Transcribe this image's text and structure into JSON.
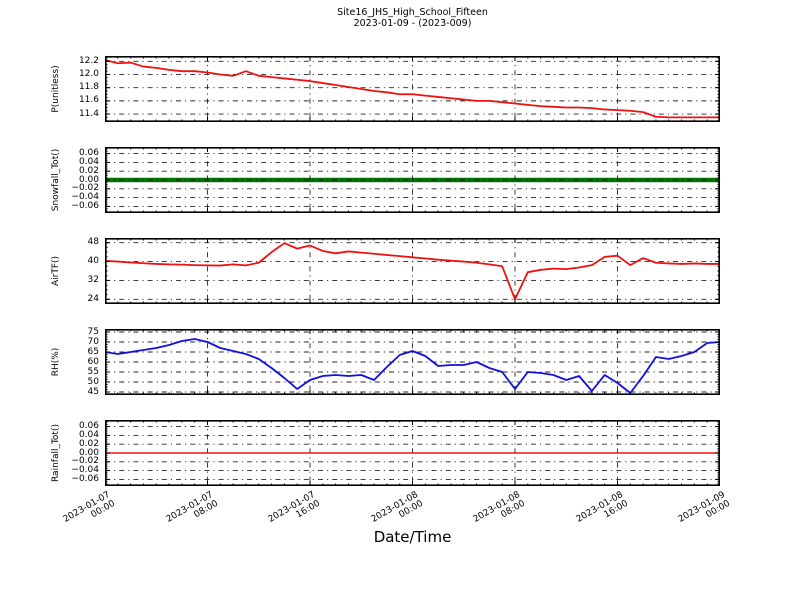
{
  "title": {
    "line1": "Site16_JHS_High_School_Fifteen",
    "line2": "2023-01-09 - (2023-009)"
  },
  "xlabel": "Date/Time",
  "background_color": "#ffffff",
  "grid": {
    "style": "dash-dot",
    "color": "#000000"
  },
  "x_axis": {
    "label": "Date/Time",
    "range_hours": [
      0,
      48
    ],
    "major_tick_hours": [
      0,
      8,
      16,
      24,
      32,
      40,
      48
    ],
    "minor_tick_step_hours": 1,
    "tick_labels": [
      [
        "2023-01-07",
        "00:00"
      ],
      [
        "2023-01-07",
        "08:00"
      ],
      [
        "2023-01-07",
        "16:00"
      ],
      [
        "2023-01-08",
        "00:00"
      ],
      [
        "2023-01-08",
        "08:00"
      ],
      [
        "2023-01-08",
        "16:00"
      ],
      [
        "2023-01-09",
        "00:00"
      ]
    ]
  },
  "chart_data": [
    {
      "type": "line",
      "name": "p_unitless",
      "ylabel": "P(unitless)",
      "color": "#ee1111",
      "linewidth": 1.8,
      "ylim": [
        11.28,
        12.28
      ],
      "yticks": [
        11.4,
        11.6,
        11.8,
        12.0,
        12.2
      ],
      "ytick_labels": [
        "11.4",
        "11.6",
        "11.8",
        "12.0",
        "12.2"
      ],
      "sample_interval_hours": 1,
      "grid_over_line": false,
      "values": [
        12.22,
        12.17,
        12.18,
        12.12,
        12.1,
        12.07,
        12.05,
        12.05,
        12.03,
        12.0,
        11.98,
        12.05,
        11.98,
        11.96,
        11.94,
        11.92,
        11.9,
        11.87,
        11.84,
        11.81,
        11.78,
        11.75,
        11.73,
        11.7,
        11.7,
        11.68,
        11.66,
        11.64,
        11.62,
        11.6,
        11.6,
        11.58,
        11.56,
        11.54,
        11.52,
        11.51,
        11.5,
        11.5,
        11.49,
        11.47,
        11.46,
        11.45,
        11.43,
        11.36,
        11.35,
        11.35,
        11.35,
        11.35,
        11.35
      ]
    },
    {
      "type": "line",
      "name": "snowfall_tot",
      "ylabel": "Snowfall_Tot()",
      "color": "#007700",
      "linewidth": 4.5,
      "ylim": [
        -0.075,
        0.075
      ],
      "yticks": [
        -0.06,
        -0.04,
        -0.02,
        0.0,
        0.02,
        0.04,
        0.06
      ],
      "ytick_labels": [
        "−0.06",
        "−0.04",
        "−0.02",
        "0.00",
        "0.02",
        "0.04",
        "0.06"
      ],
      "sample_interval_hours": 1,
      "grid_over_line": true,
      "values": [
        0,
        0,
        0,
        0,
        0,
        0,
        0,
        0,
        0,
        0,
        0,
        0,
        0,
        0,
        0,
        0,
        0,
        0,
        0,
        0,
        0,
        0,
        0,
        0,
        0,
        0,
        0,
        0,
        0,
        0,
        0,
        0,
        0,
        0,
        0,
        0,
        0,
        0,
        0,
        0,
        0,
        0,
        0,
        0,
        0,
        0,
        0,
        0,
        0
      ]
    },
    {
      "type": "line",
      "name": "airtf",
      "ylabel": "AirTF()",
      "color": "#ee1111",
      "linewidth": 1.8,
      "ylim": [
        22,
        50
      ],
      "yticks": [
        24,
        32,
        40,
        48
      ],
      "ytick_labels": [
        "24",
        "32",
        "40",
        "48"
      ],
      "sample_interval_hours": 1,
      "grid_over_line": false,
      "values": [
        40.3,
        40.0,
        39.6,
        39.3,
        39.0,
        38.8,
        38.7,
        38.5,
        38.4,
        38.3,
        38.8,
        38.4,
        39.5,
        44.0,
        47.8,
        45.5,
        46.8,
        44.5,
        43.5,
        44.3,
        43.8,
        43.3,
        42.8,
        42.3,
        41.8,
        41.3,
        40.8,
        40.4,
        40.0,
        39.5,
        38.8,
        38.0,
        24.0,
        35.5,
        36.5,
        37.0,
        36.8,
        37.5,
        38.5,
        42.0,
        42.5,
        38.5,
        41.5,
        39.5,
        39.2,
        39.0,
        39.2,
        39.0,
        39.0
      ]
    },
    {
      "type": "line",
      "name": "rh",
      "ylabel": "RH(%)",
      "color": "#1111dd",
      "linewidth": 1.8,
      "ylim": [
        43.5,
        76.5
      ],
      "yticks": [
        45,
        50,
        55,
        60,
        65,
        70,
        75
      ],
      "ytick_labels": [
        "45",
        "50",
        "55",
        "60",
        "65",
        "70",
        "75"
      ],
      "sample_interval_hours": 1,
      "grid_over_line": false,
      "values": [
        65,
        64,
        65,
        66,
        67,
        68.5,
        70.5,
        71.5,
        70,
        67,
        65.5,
        64,
        61.5,
        57,
        52,
        46.5,
        51,
        53,
        53.5,
        53,
        53.5,
        51,
        57.5,
        63.5,
        65.5,
        63,
        58,
        58.5,
        58.5,
        60,
        57,
        55,
        46.5,
        55,
        54.5,
        53.5,
        51,
        53,
        45.5,
        53.5,
        49.5,
        44.5,
        53,
        62.5,
        61.5,
        63,
        65,
        69.5,
        70
      ]
    },
    {
      "type": "line",
      "name": "rainfall_tot",
      "ylabel": "Rainfall_Tot()",
      "color": "#ee1111",
      "linewidth": 1.6,
      "ylim": [
        -0.075,
        0.075
      ],
      "yticks": [
        -0.06,
        -0.04,
        -0.02,
        0.0,
        0.02,
        0.04,
        0.06
      ],
      "ytick_labels": [
        "−0.06",
        "−0.04",
        "−0.02",
        "0.00",
        "0.02",
        "0.04",
        "0.06"
      ],
      "sample_interval_hours": 1,
      "grid_over_line": false,
      "values": [
        0,
        0,
        0,
        0,
        0,
        0,
        0,
        0,
        0,
        0,
        0,
        0,
        0,
        0,
        0,
        0,
        0,
        0,
        0,
        0,
        0,
        0,
        0,
        0,
        0,
        0,
        0,
        0,
        0,
        0,
        0,
        0,
        0,
        0,
        0,
        0,
        0,
        0,
        0,
        0,
        0,
        0,
        0,
        0,
        0,
        0,
        0,
        0,
        0
      ]
    }
  ]
}
